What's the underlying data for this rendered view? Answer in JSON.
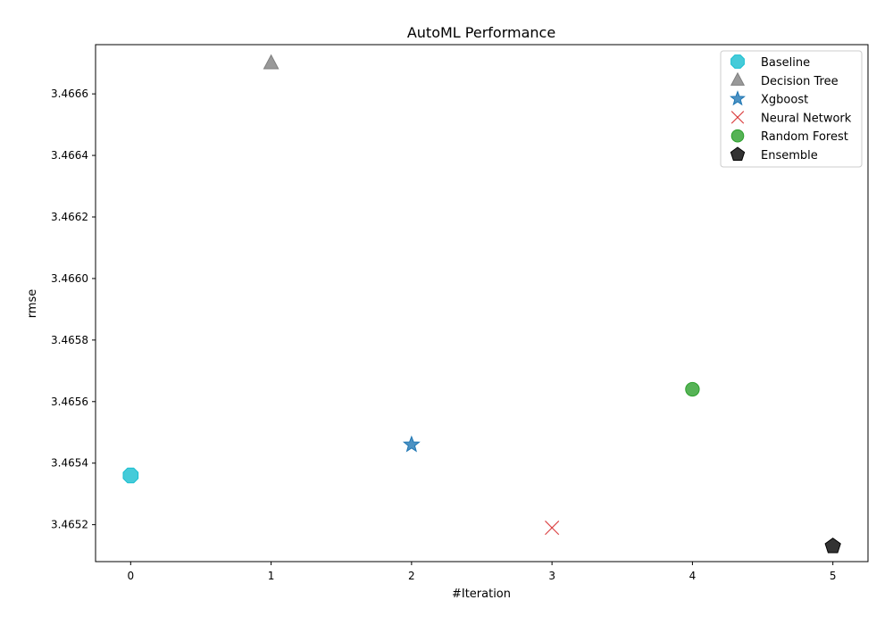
{
  "chart_data": {
    "type": "scatter",
    "title": "AutoML Performance",
    "xlabel": "#Iteration",
    "ylabel": "rmse",
    "xlim": [
      -0.25,
      5.25
    ],
    "ylim": [
      3.46508,
      3.46676
    ],
    "xticks": [
      0,
      1,
      2,
      3,
      4,
      5
    ],
    "yticks": [
      3.4652,
      3.4654,
      3.4656,
      3.4658,
      3.466,
      3.4662,
      3.4664,
      3.4666
    ],
    "grid": false,
    "legend_position": "top-right",
    "series": [
      {
        "name": "Baseline",
        "marker": "octagon",
        "color": "#17becf",
        "x": [
          0
        ],
        "y": [
          3.46536
        ]
      },
      {
        "name": "Decision Tree",
        "marker": "triangle",
        "color": "#7f7f7f",
        "x": [
          1
        ],
        "y": [
          3.4667
        ]
      },
      {
        "name": "Xgboost",
        "marker": "star",
        "color": "#1f77b4",
        "x": [
          2
        ],
        "y": [
          3.46546
        ]
      },
      {
        "name": "Neural Network",
        "marker": "x",
        "color": "#d62728",
        "x": [
          3
        ],
        "y": [
          3.46519
        ]
      },
      {
        "name": "Random Forest",
        "marker": "circle",
        "color": "#2ca02c",
        "x": [
          4
        ],
        "y": [
          3.46564
        ]
      },
      {
        "name": "Ensemble",
        "marker": "pentagon",
        "color": "#000000",
        "x": [
          5
        ],
        "y": [
          3.46513
        ]
      }
    ]
  }
}
